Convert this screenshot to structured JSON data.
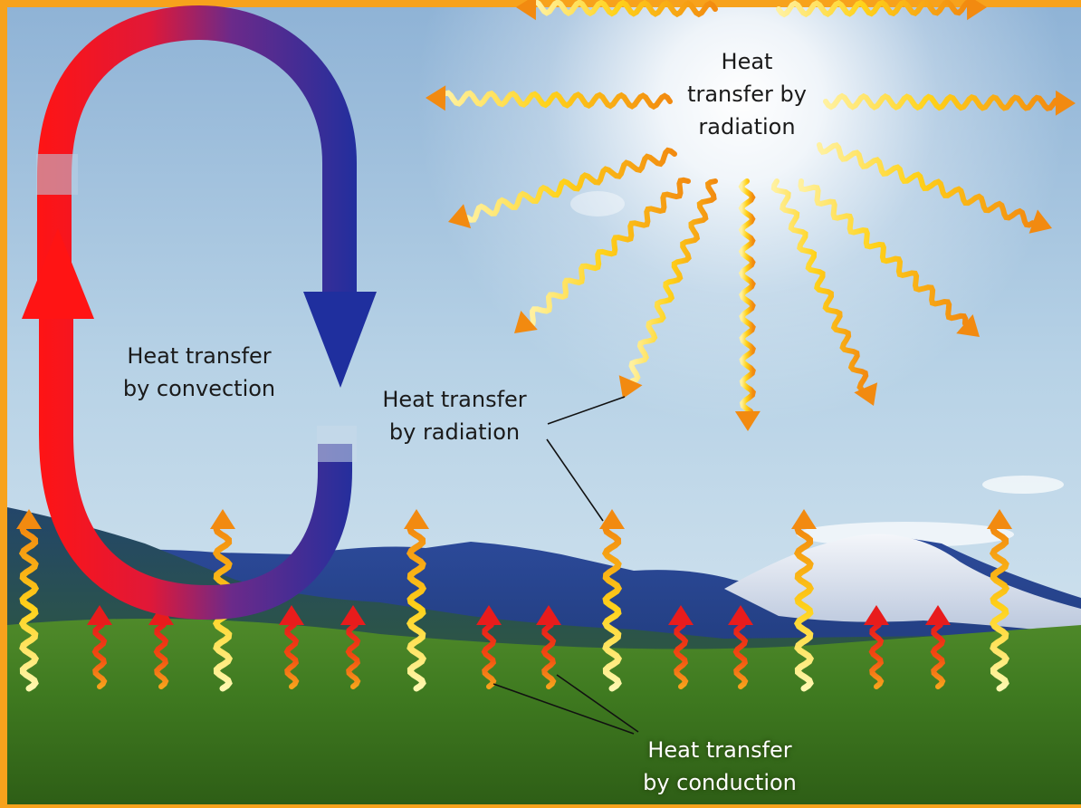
{
  "labels": {
    "radiation_sun": [
      "Heat",
      "transfer by",
      "radiation"
    ],
    "convection": [
      "Heat transfer",
      "by convection"
    ],
    "radiation_ground": [
      "Heat transfer",
      "by radiation"
    ],
    "conduction": [
      "Heat transfer",
      "by conduction"
    ]
  },
  "colors": {
    "frame": "#f7a21c",
    "convection_hot": "#ff1a1a",
    "convection_cold": "#1f2f9e",
    "radiation_wave": "#ffd21a",
    "radiation_tip": "#f28a10",
    "conduction_wave": "#f24a10"
  }
}
